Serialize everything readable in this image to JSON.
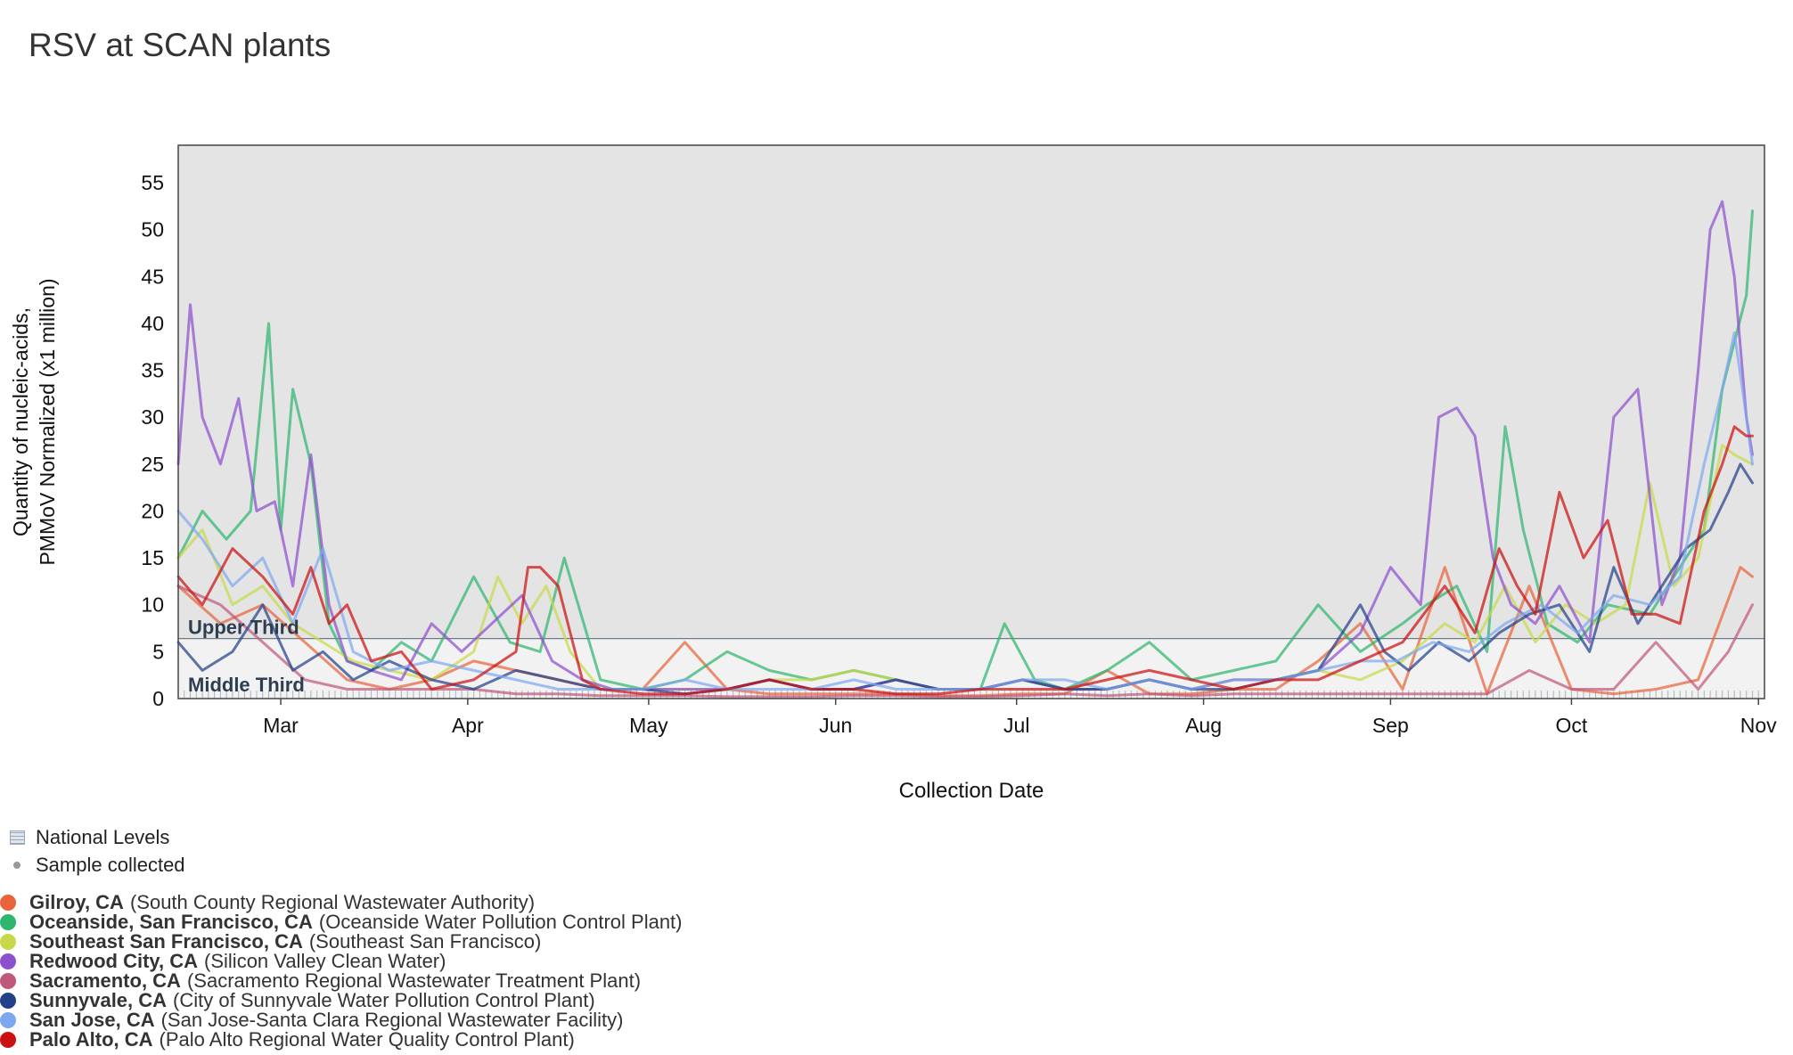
{
  "title": "RSV at SCAN plants",
  "legend_top": [
    {
      "label": "National Levels",
      "icon": "hatched-box-icon"
    },
    {
      "label": "Sample collected",
      "icon": "gray-dot-icon"
    }
  ],
  "series_legend": [
    {
      "name": "Gilroy, CA",
      "plant": "(South County Regional Wastewater Authority)",
      "color": "#e8643a"
    },
    {
      "name": "Oceanside, San Francisco, CA",
      "plant": "(Oceanside Water Pollution Control Plant)",
      "color": "#2eb56e"
    },
    {
      "name": "Southeast San Francisco, CA",
      "plant": "(Southeast San Francisco)",
      "color": "#c7d94a"
    },
    {
      "name": "Redwood City, CA",
      "plant": "(Silicon Valley Clean Water)",
      "color": "#8e4fcf"
    },
    {
      "name": "Sacramento, CA",
      "plant": "(Sacramento Regional Wastewater Treatment Plant)",
      "color": "#c0587a"
    },
    {
      "name": "Sunnyvale, CA",
      "plant": "(City of Sunnyvale Water Pollution Control Plant)",
      "color": "#23418a"
    },
    {
      "name": "San Jose, CA",
      "plant": "(San Jose-Santa Clara Regional Wastewater Facility)",
      "color": "#7da7ef"
    },
    {
      "name": "Palo Alto, CA",
      "plant": "(Palo Alto Regional Water Quality Control Plant)",
      "color": "#cc1111"
    }
  ],
  "chart_data": {
    "type": "line",
    "xlabel": "Collection Date",
    "ylabel": [
      "Quantity of nucleic-acids,",
      "PMMoV Normalized (x1 million)"
    ],
    "x_ticks": [
      "Mar",
      "Apr",
      "May",
      "Jun",
      "Jul",
      "Aug",
      "Sep",
      "Oct",
      "Nov"
    ],
    "x_range": [
      "Feb 12",
      "Nov 1"
    ],
    "y_ticks": [
      0,
      5,
      10,
      15,
      20,
      25,
      30,
      35,
      40,
      45,
      50,
      55
    ],
    "ylim": [
      0,
      59
    ],
    "bands": [
      {
        "label": "Upper Third",
        "from": 6.4,
        "to": 59,
        "color": "#e4e4e4"
      },
      {
        "label": "Middle Third",
        "from": 0,
        "to": 6.4,
        "color": "#f2f2f2"
      }
    ],
    "x_unit": "day of year",
    "series": [
      {
        "name": "Gilroy, CA",
        "color": "#e8643a",
        "x": [
          43,
          50,
          57,
          64,
          71,
          78,
          85,
          92,
          99,
          106,
          113,
          120,
          127,
          134,
          141,
          148,
          155,
          162,
          169,
          176,
          183,
          190,
          197,
          204,
          211,
          218,
          225,
          232,
          239,
          246,
          253,
          260,
          267,
          274,
          281,
          288,
          295,
          302,
          304
        ],
        "y": [
          12,
          8,
          10,
          6,
          2,
          1,
          2,
          4,
          3,
          2,
          1,
          1,
          6,
          1,
          0.5,
          0.5,
          0.5,
          0.5,
          0.3,
          0.3,
          0.5,
          0.5,
          3,
          0.5,
          0.5,
          1,
          1,
          4,
          8,
          1,
          14,
          0.5,
          12,
          1,
          0.5,
          1,
          2,
          14,
          13
        ]
      },
      {
        "name": "Oceanside, San Francisco, CA",
        "color": "#2eb56e",
        "x": [
          43,
          47,
          51,
          55,
          58,
          60,
          62,
          65,
          68,
          71,
          75,
          80,
          85,
          92,
          98,
          103,
          107,
          113,
          120,
          127,
          134,
          141,
          148,
          155,
          162,
          169,
          176,
          180,
          185,
          190,
          197,
          204,
          211,
          218,
          225,
          232,
          239,
          246,
          250,
          255,
          260,
          263,
          266,
          270,
          275,
          280,
          287,
          292,
          296,
          299,
          301,
          303,
          304
        ],
        "y": [
          15,
          20,
          17,
          20,
          40,
          18,
          33,
          25,
          8,
          4,
          3,
          6,
          4,
          13,
          6,
          5,
          15,
          2,
          1,
          2,
          5,
          3,
          2,
          3,
          2,
          1,
          1,
          8,
          2,
          1,
          3,
          6,
          2,
          3,
          4,
          10,
          5,
          8,
          10,
          12,
          5,
          29,
          18,
          8,
          6,
          10,
          9,
          14,
          18,
          33,
          38,
          43,
          52
        ]
      },
      {
        "name": "Southeast San Francisco, CA",
        "color": "#c7d94a",
        "x": [
          43,
          47,
          52,
          57,
          62,
          67,
          72,
          78,
          85,
          92,
          96,
          100,
          104,
          108,
          113,
          120,
          127,
          134,
          141,
          148,
          155,
          162,
          169,
          176,
          183,
          190,
          197,
          204,
          211,
          218,
          225,
          232,
          239,
          246,
          253,
          258,
          263,
          268,
          273,
          278,
          283,
          287,
          291,
          295,
          299,
          301,
          304
        ],
        "y": [
          15,
          18,
          10,
          12,
          8,
          6,
          4,
          3,
          2,
          5,
          13,
          8,
          12,
          5,
          1,
          1,
          1,
          1,
          2,
          2,
          3,
          2,
          1,
          1,
          2,
          1,
          1,
          2,
          1,
          2,
          2,
          3,
          2,
          4,
          8,
          6,
          12,
          6,
          10,
          8,
          10,
          23,
          12,
          15,
          27,
          26,
          25
        ]
      },
      {
        "name": "Redwood City, CA",
        "color": "#8e4fcf",
        "x": [
          43,
          45,
          47,
          50,
          53,
          56,
          59,
          62,
          65,
          68,
          71,
          75,
          80,
          85,
          90,
          95,
          100,
          105,
          110,
          115,
          120,
          127,
          134,
          141,
          148,
          155,
          162,
          169,
          176,
          183,
          190,
          197,
          204,
          211,
          218,
          225,
          232,
          239,
          244,
          249,
          252,
          255,
          258,
          261,
          264,
          268,
          272,
          277,
          281,
          285,
          289,
          292,
          295,
          297,
          299,
          301,
          303,
          304
        ],
        "y": [
          25,
          42,
          30,
          25,
          32,
          20,
          21,
          12,
          26,
          10,
          4,
          3,
          2,
          8,
          5,
          8,
          11,
          4,
          2,
          1,
          1,
          1,
          1,
          2,
          1,
          1,
          2,
          1,
          1,
          2,
          1,
          1,
          2,
          1,
          2,
          2,
          3,
          7,
          14,
          10,
          30,
          31,
          28,
          15,
          10,
          8,
          12,
          6,
          30,
          33,
          10,
          15,
          35,
          50,
          53,
          45,
          30,
          26
        ]
      },
      {
        "name": "Sacramento, CA",
        "color": "#c0587a",
        "x": [
          43,
          50,
          57,
          64,
          71,
          78,
          85,
          92,
          99,
          106,
          113,
          120,
          127,
          134,
          141,
          148,
          155,
          162,
          169,
          176,
          183,
          190,
          197,
          204,
          211,
          218,
          225,
          232,
          239,
          246,
          253,
          260,
          267,
          274,
          281,
          288,
          295,
          300,
          304
        ],
        "y": [
          12,
          10,
          6,
          2,
          1,
          1,
          1,
          1,
          0.5,
          0.5,
          0.3,
          0.3,
          0.3,
          0.2,
          0.2,
          0.2,
          0.3,
          0.3,
          0.2,
          0.2,
          0.3,
          0.5,
          0.3,
          0.5,
          0.3,
          0.5,
          0.5,
          0.5,
          0.5,
          0.5,
          0.5,
          0.5,
          3,
          1,
          1,
          6,
          1,
          5,
          10
        ]
      },
      {
        "name": "Sunnyvale, CA",
        "color": "#23418a",
        "x": [
          43,
          47,
          52,
          57,
          62,
          67,
          72,
          78,
          85,
          92,
          99,
          106,
          113,
          120,
          127,
          134,
          141,
          148,
          155,
          162,
          169,
          176,
          183,
          190,
          197,
          204,
          211,
          218,
          225,
          232,
          239,
          243,
          247,
          252,
          257,
          262,
          267,
          272,
          277,
          281,
          285,
          289,
          293,
          297,
          300,
          302,
          304
        ],
        "y": [
          6,
          3,
          5,
          10,
          3,
          5,
          2,
          4,
          2,
          1,
          3,
          2,
          1,
          1,
          0.5,
          1,
          2,
          1,
          1,
          2,
          1,
          1,
          2,
          1,
          1,
          2,
          1,
          1,
          2,
          3,
          10,
          5,
          3,
          6,
          4,
          7,
          9,
          10,
          5,
          14,
          8,
          12,
          16,
          18,
          22,
          25,
          23
        ]
      },
      {
        "name": "San Jose, CA",
        "color": "#7da7ef",
        "x": [
          43,
          47,
          52,
          57,
          62,
          67,
          72,
          78,
          85,
          92,
          99,
          106,
          113,
          120,
          127,
          134,
          141,
          148,
          155,
          162,
          169,
          176,
          183,
          190,
          197,
          204,
          211,
          218,
          225,
          232,
          239,
          245,
          251,
          257,
          263,
          269,
          275,
          281,
          287,
          292,
          296,
          299,
          301,
          303,
          304
        ],
        "y": [
          20,
          17,
          12,
          15,
          8,
          16,
          5,
          3,
          4,
          3,
          2,
          1,
          1,
          1,
          2,
          1,
          1,
          1,
          2,
          1,
          1,
          1,
          2,
          2,
          1,
          2,
          1,
          2,
          2,
          3,
          4,
          4,
          6,
          5,
          8,
          10,
          7,
          11,
          10,
          13,
          25,
          33,
          39,
          30,
          25
        ]
      },
      {
        "name": "Palo Alto, CA",
        "color": "#cc1111",
        "x": [
          43,
          47,
          52,
          57,
          62,
          65,
          68,
          71,
          75,
          80,
          85,
          92,
          99,
          101,
          103,
          106,
          110,
          113,
          120,
          127,
          134,
          141,
          148,
          155,
          162,
          169,
          176,
          183,
          190,
          197,
          204,
          211,
          218,
          225,
          232,
          239,
          246,
          253,
          258,
          262,
          265,
          268,
          272,
          276,
          280,
          284,
          288,
          292,
          296,
          299,
          301,
          303,
          304
        ],
        "y": [
          13,
          10,
          16,
          13,
          9,
          14,
          8,
          10,
          4,
          5,
          1,
          2,
          5,
          14,
          14,
          12,
          2,
          1,
          0.5,
          0.5,
          1,
          2,
          1,
          1,
          0.5,
          0.5,
          1,
          1,
          1,
          2,
          3,
          2,
          1,
          2,
          2,
          4,
          6,
          12,
          7,
          16,
          12,
          9,
          22,
          15,
          19,
          9,
          9,
          8,
          20,
          25,
          29,
          28,
          28
        ]
      }
    ]
  }
}
